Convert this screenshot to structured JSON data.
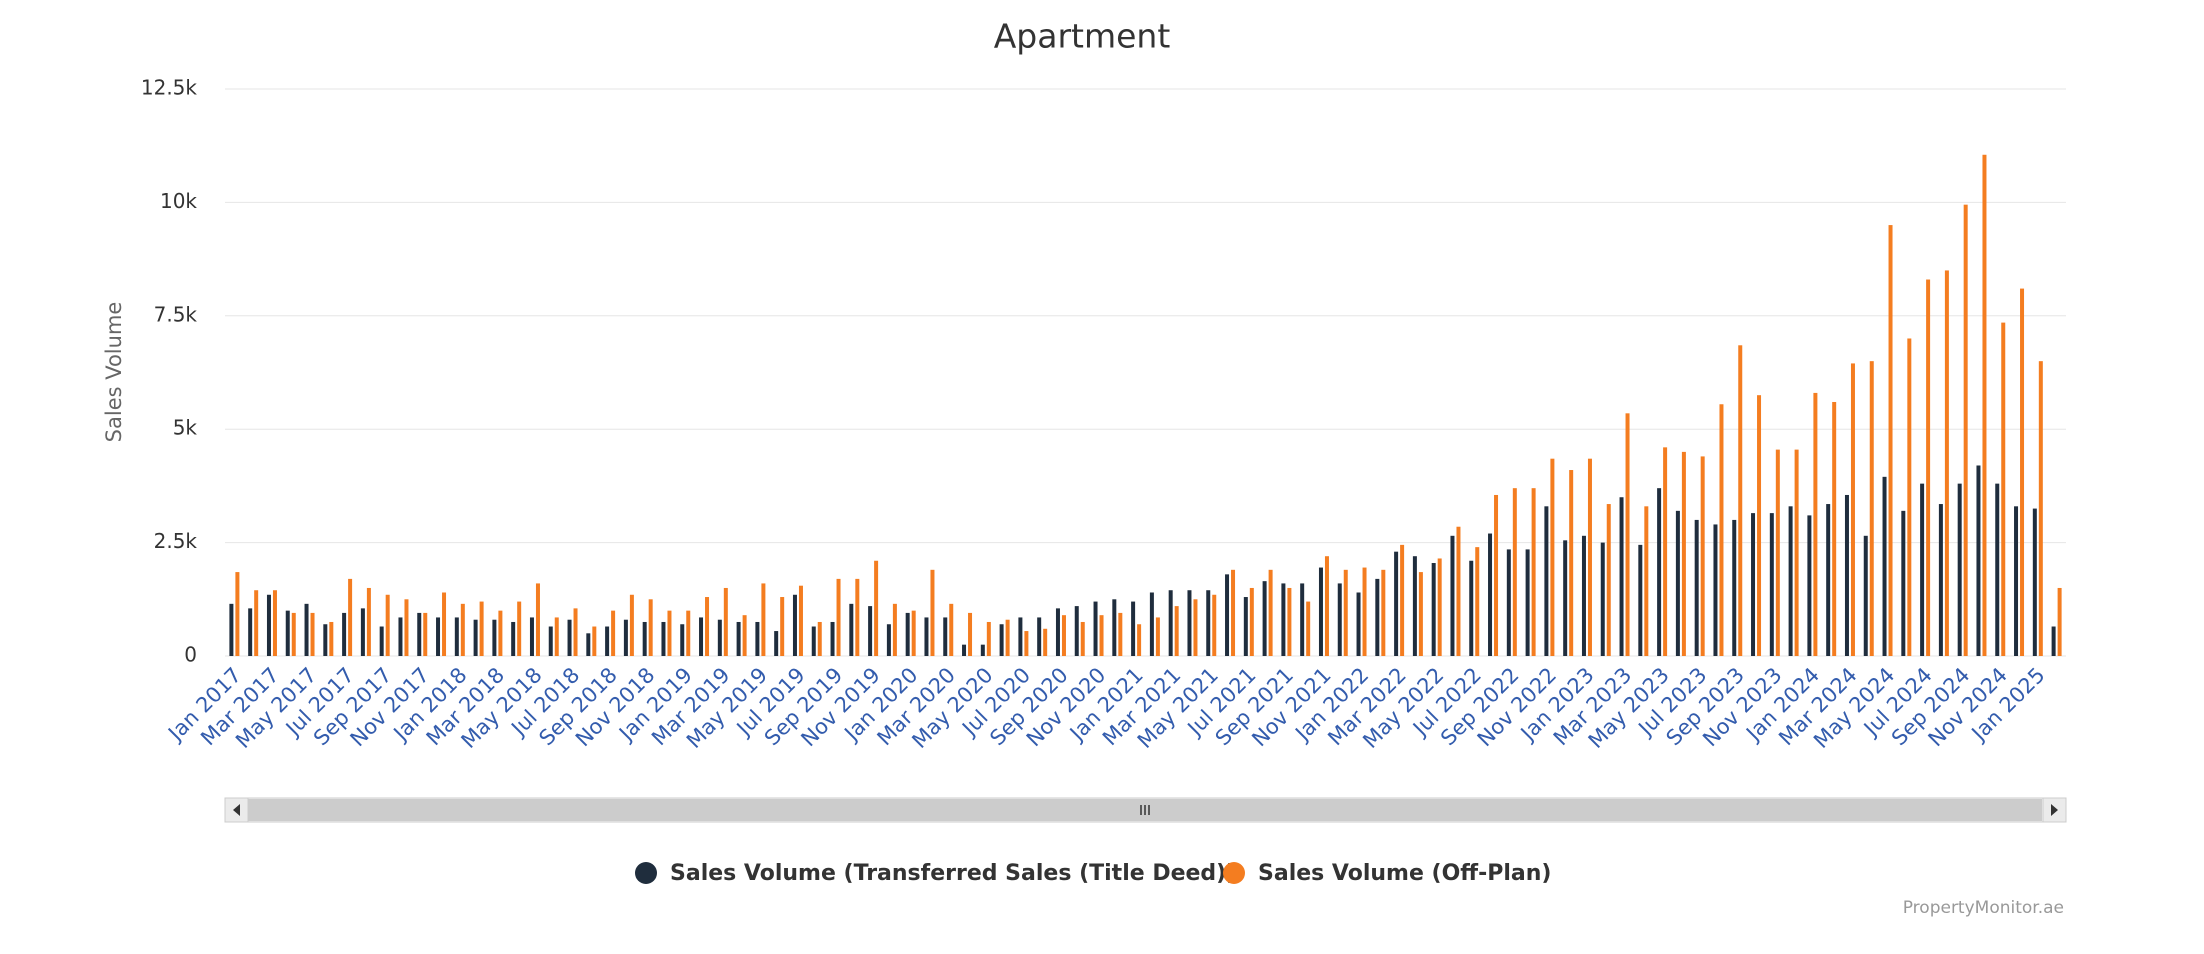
{
  "chart_data": {
    "type": "bar",
    "title": "Apartment",
    "y_label": "Sales Volume",
    "credits": "PropertyMonitor.ae",
    "categories": [
      "Jan 2017",
      null,
      "Mar 2017",
      null,
      "May 2017",
      null,
      "Jul 2017",
      null,
      "Sep 2017",
      null,
      "Nov 2017",
      null,
      "Jan 2018",
      null,
      "Mar 2018",
      null,
      "May 2018",
      null,
      "Jul 2018",
      null,
      "Sep 2018",
      null,
      "Nov 2018",
      null,
      "Jan 2019",
      null,
      "Mar 2019",
      null,
      "May 2019",
      null,
      "Jul 2019",
      null,
      "Sep 2019",
      null,
      "Nov 2019",
      null,
      "Jan 2020",
      null,
      "Mar 2020",
      null,
      "May 2020",
      null,
      "Jul 2020",
      null,
      "Sep 2020",
      null,
      "Nov 2020",
      null,
      "Jan 2021",
      null,
      "Mar 2021",
      null,
      "May 2021",
      null,
      "Jul 2021",
      null,
      "Sep 2021",
      null,
      "Nov 2021",
      null,
      "Jan 2022",
      null,
      "Mar 2022",
      null,
      "May 2022",
      null,
      "Jul 2022",
      null,
      "Sep 2022",
      null,
      "Nov 2022",
      null,
      "Jan 2023",
      null,
      "Mar 2023",
      null,
      "May 2023",
      null,
      "Jul 2023",
      null,
      "Sep 2023",
      null,
      "Nov 2023",
      null,
      "Jan 2024",
      null,
      "Mar 2024",
      null,
      "May 2024",
      null,
      "Jul 2024",
      null,
      "Sep 2024",
      null,
      "Nov 2024",
      null,
      "Jan 2025",
      null
    ],
    "series": [
      {
        "name": "Sales Volume (Transferred Sales (Title Deed))",
        "color": "#1f2d3d",
        "values": [
          1150,
          1050,
          1350,
          1000,
          1150,
          700,
          950,
          1050,
          650,
          850,
          950,
          850,
          850,
          800,
          800,
          750,
          850,
          650,
          800,
          500,
          650,
          800,
          750,
          750,
          700,
          850,
          800,
          750,
          750,
          550,
          1350,
          650,
          750,
          1150,
          1100,
          700,
          950,
          850,
          850,
          250,
          250,
          700,
          850,
          850,
          1050,
          1100,
          1200,
          1250,
          1200,
          1400,
          1450,
          1450,
          1450,
          1800,
          1300,
          1650,
          1600,
          1600,
          1950,
          1600,
          1400,
          1700,
          2300,
          2200,
          2050,
          2650,
          2100,
          2700,
          2350,
          2350,
          3300,
          2550,
          2650,
          2500,
          3500,
          2450,
          3700,
          3200,
          3000,
          2900,
          3000,
          3150,
          3150,
          3300,
          3100,
          3350,
          3550,
          2650,
          3950,
          3200,
          3800,
          3350,
          3800,
          4200,
          3800,
          3300,
          3250,
          650
        ]
      },
      {
        "name": "Sales Volume (Off-Plan)",
        "color": "#f47d20",
        "values": [
          1850,
          1450,
          1450,
          950,
          950,
          750,
          1700,
          1500,
          1350,
          1250,
          950,
          1400,
          1150,
          1200,
          1000,
          1200,
          1600,
          850,
          1050,
          650,
          1000,
          1350,
          1250,
          1000,
          1000,
          1300,
          1500,
          900,
          1600,
          1300,
          1550,
          750,
          1700,
          1700,
          2100,
          1150,
          1000,
          1900,
          1150,
          950,
          750,
          800,
          550,
          600,
          900,
          750,
          900,
          950,
          700,
          850,
          1100,
          1250,
          1350,
          1900,
          1500,
          1900,
          1500,
          1200,
          2200,
          1900,
          1950,
          1900,
          2450,
          1850,
          2150,
          2850,
          2400,
          3550,
          3700,
          3700,
          4350,
          4100,
          4350,
          3350,
          5350,
          3300,
          4600,
          4500,
          4400,
          5550,
          6850,
          5750,
          4550,
          4550,
          5800,
          5600,
          6450,
          6500,
          9500,
          7000,
          8300,
          8500,
          9950,
          11050,
          7350,
          8100,
          6500,
          1500
        ]
      }
    ],
    "ylim": [
      0,
      12500
    ],
    "yticks": [
      0,
      {
        "value": 2500,
        "label": "2.5k"
      },
      {
        "value": 5000,
        "label": "5k"
      },
      {
        "value": 7500,
        "label": "7.5k"
      },
      {
        "value": 10000,
        "label": "10k"
      },
      {
        "value": 12500,
        "label": "12.5k"
      }
    ],
    "grid": true
  }
}
